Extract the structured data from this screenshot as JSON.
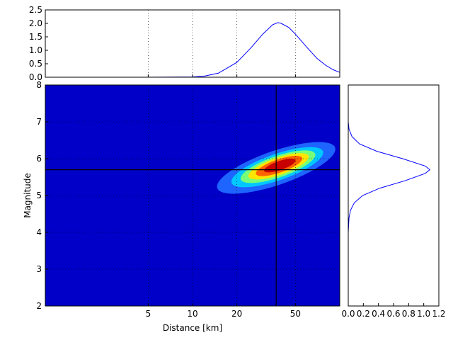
{
  "chart_data": [
    {
      "type": "line",
      "panel": "top-marginal",
      "x": [
        1,
        2,
        5,
        10,
        12,
        15,
        20,
        25,
        30,
        35,
        38,
        40,
        45,
        50,
        60,
        70,
        80,
        90,
        100
      ],
      "series": [
        {
          "values": [
            0,
            0,
            0,
            0.01,
            0.04,
            0.15,
            0.55,
            1.1,
            1.6,
            1.95,
            2.03,
            2.0,
            1.85,
            1.6,
            1.1,
            0.7,
            0.45,
            0.28,
            0.18
          ]
        }
      ],
      "xscale": "log",
      "xlim": [
        1,
        100
      ],
      "ylim": [
        0,
        2.5
      ],
      "yticks": [
        "0.0",
        "0.5",
        "1.0",
        "1.5",
        "2.0",
        "2.5"
      ],
      "line_color": "#0000ff",
      "grid": true
    },
    {
      "type": "heatmap",
      "panel": "main",
      "xlabel": "Distance [km]",
      "ylabel": "Magnitude",
      "xscale": "log",
      "xlim": [
        1,
        100
      ],
      "ylim": [
        2,
        8
      ],
      "xticks": [
        {
          "value": 5,
          "label": "5"
        },
        {
          "value": 10,
          "label": "10"
        },
        {
          "value": 20,
          "label": "20"
        },
        {
          "value": 50,
          "label": "50"
        }
      ],
      "yticks": [
        "2",
        "3",
        "4",
        "5",
        "6",
        "7",
        "8"
      ],
      "peak": {
        "distance_km": 37,
        "magnitude": 5.75
      },
      "crosshair": {
        "distance_km": 37,
        "magnitude": 5.7
      },
      "contour_levels": [
        0.1,
        0.25,
        0.4,
        0.55,
        0.7,
        0.85
      ],
      "colormap": [
        "#0000c8",
        "#1e64ff",
        "#00c8ff",
        "#78ff78",
        "#ffe600",
        "#ff6400",
        "#c80000"
      ],
      "background_color": "#0000c8",
      "grid": true
    },
    {
      "type": "line",
      "panel": "right-marginal",
      "orientation": "horizontal",
      "y": [
        2.0,
        4.0,
        4.4,
        4.6,
        4.8,
        5.0,
        5.2,
        5.4,
        5.6,
        5.7,
        5.8,
        6.0,
        6.2,
        6.4,
        6.6,
        6.8,
        7.0,
        8.0
      ],
      "series": [
        {
          "values": [
            0,
            0,
            0.01,
            0.03,
            0.08,
            0.19,
            0.42,
            0.75,
            1.02,
            1.08,
            1.02,
            0.72,
            0.38,
            0.15,
            0.05,
            0.01,
            0,
            0
          ]
        }
      ],
      "xlim": [
        0,
        1.2
      ],
      "xticks": [
        "0.0",
        "0.2",
        "0.4",
        "0.6",
        "0.8",
        "1.0",
        "1.2"
      ],
      "ylim": [
        2,
        8
      ],
      "line_color": "#0000ff",
      "grid": false
    }
  ]
}
